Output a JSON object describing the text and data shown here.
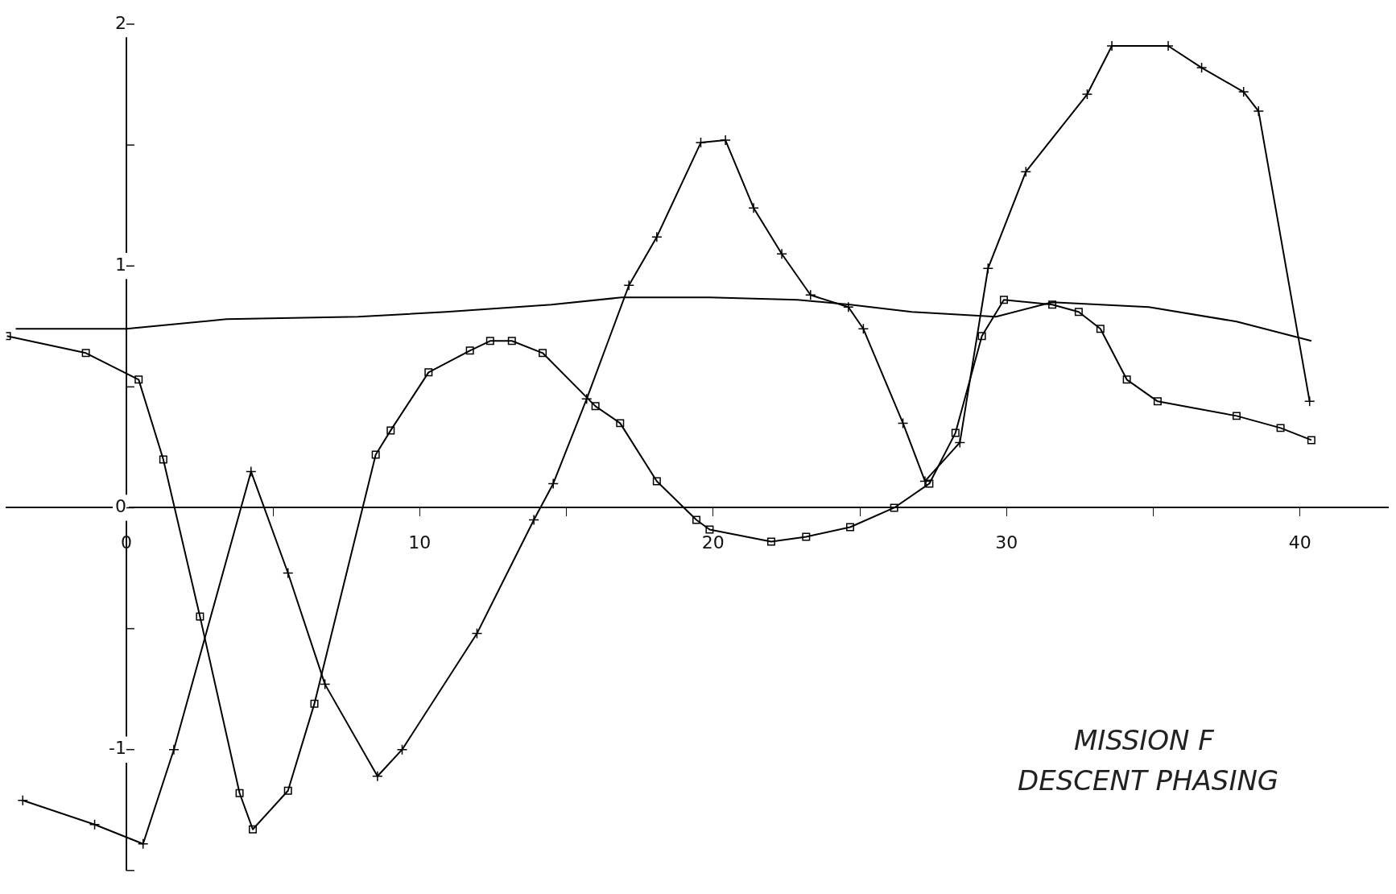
{
  "chart_data": {
    "type": "line",
    "xlim": [
      -4.1,
      43
    ],
    "ylim": [
      -1.5,
      2
    ],
    "xticks": [
      0,
      {
        "value": 5,
        "label": null
      },
      10,
      {
        "value": 15,
        "label": null
      },
      20,
      {
        "value": 25,
        "label": null
      },
      30,
      {
        "value": 35,
        "label": null
      },
      40
    ],
    "yticks": [
      {
        "value": -1.5,
        "label": null
      },
      -1,
      {
        "value": -0.5,
        "label": null
      },
      0,
      {
        "value": 0.5,
        "label": null
      },
      1,
      {
        "value": 1.5,
        "label": null
      },
      2
    ],
    "grid": false,
    "legend": false,
    "line_style": "solid",
    "annotations": [
      "MISSION F",
      "DESCENT PHASING"
    ],
    "series": [
      {
        "color": "#000000",
        "marker": "cross",
        "x": [
          -3.53,
          -1.08,
          0.57,
          1.62,
          4.25,
          5.51,
          6.77,
          8.56,
          9.4,
          11.95,
          13.89,
          14.55,
          15.69,
          17.13,
          18.08,
          19.58,
          20.42,
          21.38,
          22.34,
          23.32,
          24.61,
          25.12,
          26.47,
          27.22,
          28.41,
          29.37,
          30.66,
          32.75,
          33.59,
          35.51,
          36.65,
          38.08,
          38.59,
          40.33
        ],
        "values": [
          -1.21,
          -1.31,
          -1.39,
          -1.0,
          0.15,
          -0.27,
          -0.73,
          -1.11,
          -1.0,
          -0.52,
          -0.05,
          0.1,
          0.45,
          0.92,
          1.12,
          1.51,
          1.52,
          1.24,
          1.05,
          0.88,
          0.83,
          0.74,
          0.35,
          0.11,
          0.27,
          0.99,
          1.39,
          1.71,
          1.91,
          1.91,
          1.82,
          1.72,
          1.64,
          0.44
        ]
      },
      {
        "color": "#000000",
        "marker": "square",
        "x": [
          -4.07,
          -1.38,
          0.42,
          1.26,
          2.51,
          3.86,
          4.31,
          5.51,
          6.41,
          8.5,
          9.01,
          10.3,
          11.71,
          12.4,
          13.14,
          14.19,
          15.99,
          16.83,
          18.08,
          19.43,
          19.88,
          21.98,
          23.17,
          24.67,
          26.17,
          27.37,
          28.26,
          29.16,
          29.91,
          31.56,
          32.46,
          33.2,
          34.1,
          35.15,
          37.84,
          39.34,
          40.39
        ],
        "values": [
          0.71,
          0.64,
          0.53,
          0.2,
          -0.45,
          -1.18,
          -1.33,
          -1.17,
          -0.81,
          0.22,
          0.32,
          0.56,
          0.65,
          0.69,
          0.69,
          0.64,
          0.42,
          0.35,
          0.11,
          -0.05,
          -0.09,
          -0.14,
          -0.12,
          -0.08,
          0.0,
          0.1,
          0.31,
          0.71,
          0.86,
          0.84,
          0.81,
          0.74,
          0.53,
          0.44,
          0.38,
          0.33,
          0.28
        ]
      },
      {
        "color": "#000000",
        "marker": "none",
        "x": [
          -3.77,
          0,
          3.41,
          7.9,
          10.9,
          14.49,
          16.89,
          19.88,
          22.87,
          24.67,
          26.77,
          29.64,
          31.56,
          34.85,
          37.84,
          40.39
        ],
        "values": [
          0.74,
          0.74,
          0.78,
          0.79,
          0.81,
          0.84,
          0.87,
          0.87,
          0.86,
          0.84,
          0.81,
          0.79,
          0.85,
          0.83,
          0.77,
          0.69
        ]
      }
    ]
  }
}
